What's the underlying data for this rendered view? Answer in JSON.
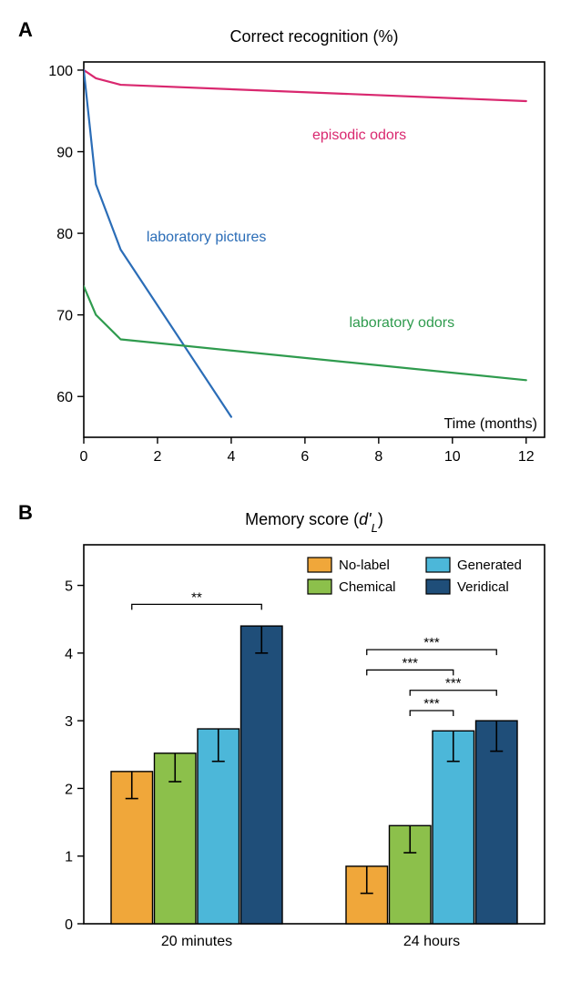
{
  "panelA": {
    "label": "A",
    "type": "line",
    "title": "Correct recognition (%)",
    "xlim": [
      0,
      12.5
    ],
    "ylim": [
      55,
      101
    ],
    "xticks": [
      0,
      2,
      4,
      6,
      8,
      10,
      12
    ],
    "yticks": [
      60,
      70,
      80,
      90,
      100
    ],
    "xlabel": "Time (months)",
    "background_color": "#ffffff",
    "axis_color": "#000000",
    "tick_fontsize": 16,
    "title_fontsize": 18,
    "label_fontsize": 16,
    "line_width": 2.2,
    "series": [
      {
        "name": "episodic odors",
        "color": "#d9286f",
        "label_x": 6.2,
        "label_y": 91.5,
        "points": [
          [
            0,
            100
          ],
          [
            0.33,
            99
          ],
          [
            1,
            98.2
          ],
          [
            12,
            96.2
          ]
        ]
      },
      {
        "name": "laboratory pictures",
        "color": "#2b6db7",
        "label_x": 1.7,
        "label_y": 79,
        "points": [
          [
            0,
            100
          ],
          [
            0.33,
            86
          ],
          [
            1,
            78
          ],
          [
            4,
            57.5
          ]
        ]
      },
      {
        "name": "laboratory odors",
        "color": "#2f9b4e",
        "label_x": 7.2,
        "label_y": 68.5,
        "points": [
          [
            0,
            73.5
          ],
          [
            0.33,
            70
          ],
          [
            1,
            67
          ],
          [
            12,
            62
          ]
        ]
      }
    ]
  },
  "panelB": {
    "label": "B",
    "type": "bar",
    "title": "Memory score (d'_L)",
    "ylim": [
      0,
      5.6
    ],
    "yticks": [
      0,
      1,
      2,
      3,
      4,
      5
    ],
    "background_color": "#ffffff",
    "axis_color": "#000000",
    "tick_fontsize": 16,
    "title_fontsize": 18,
    "bar_border": "#000000",
    "bar_border_width": 1.4,
    "error_bar_color": "#000000",
    "error_bar_width": 1.6,
    "error_cap": 7,
    "legend_items": [
      {
        "label": "No-label",
        "color": "#f0a73a"
      },
      {
        "label": "Chemical",
        "color": "#8cc04b"
      },
      {
        "label": "Generated",
        "color": "#4cb7d9"
      },
      {
        "label": "Veridical",
        "color": "#1f4e79"
      }
    ],
    "groups": [
      {
        "name": "20 minutes",
        "bars": [
          {
            "value": 2.25,
            "err": 0.4,
            "color": "#f0a73a"
          },
          {
            "value": 2.52,
            "err": 0.42,
            "color": "#8cc04b"
          },
          {
            "value": 2.88,
            "err": 0.48,
            "color": "#4cb7d9"
          },
          {
            "value": 4.4,
            "err": 0.4,
            "color": "#1f4e79"
          }
        ],
        "sig": [
          {
            "from": 0,
            "to": 3,
            "text": "**",
            "y": 4.72
          }
        ]
      },
      {
        "name": "24 hours",
        "bars": [
          {
            "value": 0.85,
            "err": 0.4,
            "color": "#f0a73a"
          },
          {
            "value": 1.45,
            "err": 0.4,
            "color": "#8cc04b"
          },
          {
            "value": 2.85,
            "err": 0.45,
            "color": "#4cb7d9"
          },
          {
            "value": 3.0,
            "err": 0.45,
            "color": "#1f4e79"
          }
        ],
        "sig": [
          {
            "from": 0,
            "to": 3,
            "text": "***",
            "y": 4.05
          },
          {
            "from": 0,
            "to": 2,
            "text": "***",
            "y": 3.75
          },
          {
            "from": 1,
            "to": 3,
            "text": "***",
            "y": 3.45
          },
          {
            "from": 1,
            "to": 2,
            "text": "***",
            "y": 3.15
          }
        ]
      }
    ]
  }
}
